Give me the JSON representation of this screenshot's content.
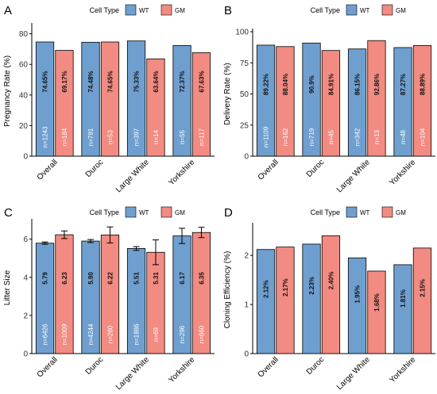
{
  "colors": {
    "wt": "#6f9fcf",
    "gm": "#f28b82"
  },
  "chart_data": [
    {
      "type": "bar",
      "panel_label": "A",
      "legend_title": "Cell Type",
      "legend": [
        "WT",
        "GM"
      ],
      "legend_position": "top",
      "ylabel": "Pregnancy Rate (%)",
      "xlabel": "",
      "ylim": [
        0,
        85
      ],
      "yticks": [
        0,
        20,
        40,
        60,
        80
      ],
      "grid": false,
      "categories": [
        "Overall",
        "Duroc",
        "Large White",
        "Yorkshire"
      ],
      "series": [
        {
          "name": "WT",
          "values": [
            74.65,
            74.48,
            75.33,
            72.37
          ],
          "value_labels": [
            "74.65%",
            "74.48%",
            "75.33%",
            "72.37%"
          ],
          "n_labels": [
            "n=1243",
            "n=791",
            "n=397",
            "n=55"
          ]
        },
        {
          "name": "GM",
          "values": [
            69.17,
            74.65,
            63.64,
            67.63
          ],
          "value_labels": [
            "69.17%",
            "74.65%",
            "63.64%",
            "67.63%"
          ],
          "n_labels": [
            "n=184",
            "n=53",
            "n=14",
            "n=117"
          ]
        }
      ]
    },
    {
      "type": "bar",
      "panel_label": "B",
      "legend_title": "Cell Type",
      "legend": [
        "WT",
        "GM"
      ],
      "legend_position": "top",
      "ylabel": "Delivery Rate (%)",
      "xlabel": "",
      "ylim": [
        0,
        100
      ],
      "yticks": [
        0,
        25,
        50,
        75,
        100
      ],
      "grid": false,
      "categories": [
        "Overall",
        "Duroc",
        "Large White",
        "Yorkshire"
      ],
      "series": [
        {
          "name": "WT",
          "values": [
            89.22,
            90.9,
            86.15,
            87.27
          ],
          "value_labels": [
            "89.22%",
            "90.9%",
            "86.15%",
            "87.27%"
          ],
          "n_labels": [
            "n=1109",
            "n=719",
            "n=342",
            "n=48"
          ]
        },
        {
          "name": "GM",
          "values": [
            88.04,
            84.91,
            92.86,
            88.89
          ],
          "value_labels": [
            "88.04%",
            "84.91%",
            "92.86%",
            "88.89%"
          ],
          "n_labels": [
            "n=162",
            "n=45",
            "n=13",
            "n=104"
          ]
        }
      ]
    },
    {
      "type": "bar",
      "panel_label": "C",
      "legend_title": "Cell Type",
      "legend": [
        "WT",
        "GM"
      ],
      "legend_position": "top",
      "ylabel": "Litter Size",
      "xlabel": "",
      "ylim": [
        0,
        6.9
      ],
      "yticks": [
        0,
        2,
        4,
        6
      ],
      "grid": false,
      "error_bars": true,
      "categories": [
        "Overall",
        "Duroc",
        "Large White",
        "Yorkshire"
      ],
      "series": [
        {
          "name": "WT",
          "values": [
            5.79,
            5.9,
            5.51,
            6.17
          ],
          "errors": [
            0.06,
            0.08,
            0.1,
            0.4
          ],
          "value_labels": [
            "5.79",
            "5.90",
            "5.51",
            "6.17"
          ],
          "n_labels": [
            "n=6426",
            "n=4244",
            "n=1886",
            "n=296"
          ]
        },
        {
          "name": "GM",
          "values": [
            6.23,
            6.22,
            5.31,
            6.35
          ],
          "errors": [
            0.2,
            0.42,
            0.65,
            0.27
          ],
          "value_labels": [
            "6.23",
            "6.22",
            "5.31",
            "6.35"
          ],
          "n_labels": [
            "n=1009",
            "n=280",
            "n=69",
            "n=660"
          ]
        }
      ]
    },
    {
      "type": "bar",
      "panel_label": "D",
      "legend_title": "Cell Type",
      "legend": [
        "WT",
        "GM"
      ],
      "legend_position": "top",
      "ylabel": "Cloning Efficiency (%)",
      "xlabel": "",
      "ylim": [
        0,
        2.6
      ],
      "yticks": [
        0,
        1,
        2
      ],
      "grid": false,
      "categories": [
        "Overall",
        "Duroc",
        "Large White",
        "Yorkshire"
      ],
      "series": [
        {
          "name": "WT",
          "values": [
            2.12,
            2.23,
            1.95,
            1.81
          ],
          "value_labels": [
            "2.12%",
            "2.23%",
            "1.95%",
            "1.81%"
          ]
        },
        {
          "name": "GM",
          "values": [
            2.17,
            2.4,
            1.68,
            2.15
          ],
          "value_labels": [
            "2.17%",
            "2.40%",
            "1.68%",
            "2.15%"
          ]
        }
      ]
    }
  ]
}
